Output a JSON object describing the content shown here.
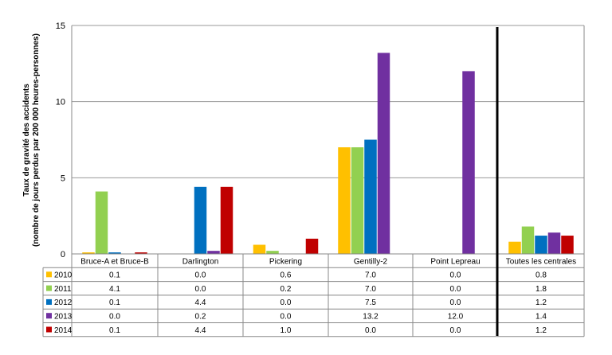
{
  "chart_data": {
    "type": "bar",
    "ylabel_line1": "Taux de gravité des accidents",
    "ylabel_line2": "(nombre de jours perdus par 200 000 heures-personnes)",
    "ylim": [
      0,
      15
    ],
    "yticks": [
      0,
      5,
      10,
      15
    ],
    "grid": true,
    "categories": [
      "Bruce-A et Bruce-B",
      "Darlington",
      "Pickering",
      "Gentilly-2",
      "Point Lepreau",
      "Toutes les centrales"
    ],
    "series": [
      {
        "name": "2010",
        "color": "#ffc000",
        "values": [
          0.1,
          0.0,
          0.6,
          7.0,
          0.0,
          0.8
        ],
        "labels": [
          "0.1",
          "0.0",
          "0.6",
          "7.0",
          "0.0",
          "0.8"
        ]
      },
      {
        "name": "2011",
        "color": "#92d050",
        "values": [
          4.1,
          0.0,
          0.2,
          7.0,
          0.0,
          1.8
        ],
        "labels": [
          "4.1",
          "0.0",
          "0.2",
          "7.0",
          "0.0",
          "1.8"
        ]
      },
      {
        "name": "2012",
        "color": "#0070c0",
        "values": [
          0.1,
          4.4,
          0.0,
          7.5,
          0.0,
          1.2
        ],
        "labels": [
          "0.1",
          "4.4",
          "0.0",
          "7.5",
          "0.0",
          "1.2"
        ]
      },
      {
        "name": "2013",
        "color": "#7030a0",
        "values": [
          0.0,
          0.2,
          0.0,
          13.2,
          12.0,
          1.4
        ],
        "labels": [
          "0.0",
          "0.2",
          "0.0",
          "13.2",
          "12.0",
          "1.4"
        ]
      },
      {
        "name": "2014",
        "color": "#c00000",
        "values": [
          0.1,
          4.4,
          1.0,
          0.0,
          0.0,
          1.2
        ],
        "labels": [
          "0.1",
          "4.4",
          "1.0",
          "0.0",
          "0.0",
          "1.2"
        ]
      }
    ],
    "legend": "data-table"
  }
}
